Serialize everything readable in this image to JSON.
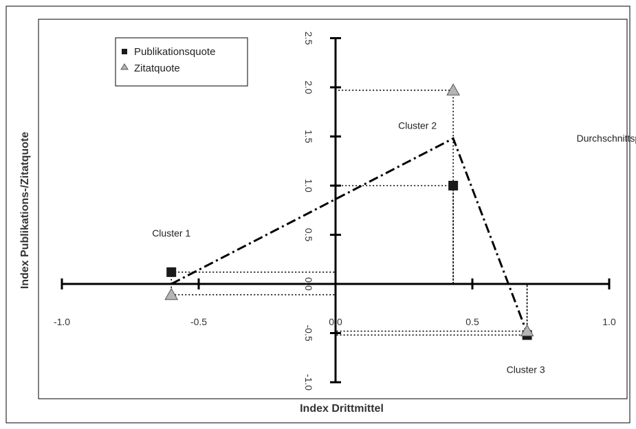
{
  "chart_data": {
    "type": "scatter",
    "title": "",
    "xlabel": "Index Drittmittel",
    "ylabel": "Index Publikations-/Zitatquote",
    "xlim": [
      -1.0,
      1.0
    ],
    "ylim": [
      -1.0,
      2.5
    ],
    "x_ticks": [
      -1.0,
      -0.5,
      0.0,
      0.5,
      1.0
    ],
    "y_ticks": [
      -1.0,
      -0.5,
      0.0,
      0.5,
      1.0,
      1.5,
      2.0,
      2.5
    ],
    "x_tick_labels": [
      "-1.0",
      "-0.5",
      "0.0",
      "0.5",
      "1.0"
    ],
    "y_tick_labels": [
      "-1.0",
      "-0.5",
      "0.0",
      "0.5",
      "1.0",
      "1.5",
      "2.0",
      "2.5"
    ],
    "legend_position": "top-left",
    "grid": false,
    "series": [
      {
        "name": "Publikationsquote",
        "marker": "square",
        "color": "#1a1a1a",
        "points": [
          {
            "x": -0.6,
            "y": 0.12
          },
          {
            "x": 0.43,
            "y": 1.0
          },
          {
            "x": 0.7,
            "y": -0.52
          }
        ]
      },
      {
        "name": "Zitatquote",
        "marker": "triangle",
        "color": "#b5b5b5",
        "points": [
          {
            "x": -0.6,
            "y": -0.11
          },
          {
            "x": 0.43,
            "y": 1.97
          },
          {
            "x": 0.7,
            "y": -0.48
          }
        ]
      }
    ],
    "profile_line": {
      "label": "Durchschnittsprofil",
      "points": [
        {
          "x": -0.6,
          "y": 0.0
        },
        {
          "x": 0.43,
          "y": 1.48
        },
        {
          "x": 0.7,
          "y": -0.5
        }
      ]
    },
    "annotations": [
      {
        "text": "Cluster 1",
        "x": -0.6,
        "y": 0.12
      },
      {
        "text": "Cluster 2",
        "x": 0.43,
        "y": 1.48
      },
      {
        "text": "Durchschnittsprofil",
        "x": 0.7,
        "y": 1.0
      },
      {
        "text": "Cluster 3",
        "x": 0.7,
        "y": -0.52
      }
    ]
  }
}
